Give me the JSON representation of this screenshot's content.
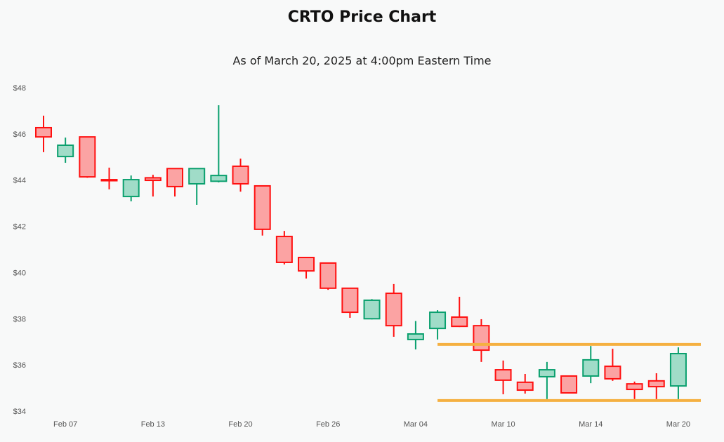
{
  "chart_data": {
    "type": "candlestick",
    "title": "CRTO Price Chart",
    "subtitle": "As of March 20, 2025 at 4:00pm Eastern Time",
    "xlabel": "",
    "ylabel": "",
    "ylim": [
      34,
      48
    ],
    "y_ticks": [
      34,
      36,
      38,
      40,
      42,
      44,
      46,
      48
    ],
    "y_tick_labels": [
      "$34",
      "$36",
      "$38",
      "$40",
      "$42",
      "$44",
      "$46",
      "$48"
    ],
    "x_tick_labels": [
      {
        "index": 1,
        "label": "Feb 07"
      },
      {
        "index": 5,
        "label": "Feb 13"
      },
      {
        "index": 9,
        "label": "Feb 20"
      },
      {
        "index": 13,
        "label": "Feb 26"
      },
      {
        "index": 17,
        "label": "Mar 04"
      },
      {
        "index": 21,
        "label": "Mar 10"
      },
      {
        "index": 25,
        "label": "Mar 14"
      },
      {
        "index": 29,
        "label": "Mar 20"
      }
    ],
    "grid": false,
    "colors": {
      "up_fill": "#a0dcc8",
      "up_line": "#0aa06e",
      "down_fill": "#fba3a3",
      "down_line": "#ff1010",
      "level_line": "#f5b041"
    },
    "candles": [
      {
        "date": "Feb 06",
        "open": 46.27,
        "high": 46.79,
        "low": 45.21,
        "close": 45.87
      },
      {
        "date": "Feb 07",
        "open": 45.02,
        "high": 45.84,
        "low": 44.75,
        "close": 45.51
      },
      {
        "date": "Feb 10",
        "open": 45.87,
        "high": 45.87,
        "low": 44.1,
        "close": 44.14
      },
      {
        "date": "Feb 11",
        "open": 44.02,
        "high": 44.54,
        "low": 43.6,
        "close": 43.98
      },
      {
        "date": "Feb 12",
        "open": 43.29,
        "high": 44.2,
        "low": 43.08,
        "close": 44.02
      },
      {
        "date": "Feb 13",
        "open": 44.1,
        "high": 44.23,
        "low": 43.29,
        "close": 43.99
      },
      {
        "date": "Feb 14",
        "open": 44.5,
        "high": 44.5,
        "low": 43.29,
        "close": 43.72
      },
      {
        "date": "Feb 18",
        "open": 43.84,
        "high": 44.5,
        "low": 42.93,
        "close": 44.5
      },
      {
        "date": "Feb 19",
        "open": 43.95,
        "high": 47.24,
        "low": 43.9,
        "close": 44.2
      },
      {
        "date": "Feb 20",
        "open": 44.6,
        "high": 44.93,
        "low": 43.5,
        "close": 43.84
      },
      {
        "date": "Feb 21",
        "open": 43.75,
        "high": 43.75,
        "low": 41.6,
        "close": 41.87
      },
      {
        "date": "Feb 24",
        "open": 41.56,
        "high": 41.8,
        "low": 40.35,
        "close": 40.44
      },
      {
        "date": "Feb 25",
        "open": 40.65,
        "high": 40.65,
        "low": 39.74,
        "close": 40.07
      },
      {
        "date": "Feb 26",
        "open": 40.41,
        "high": 40.41,
        "low": 39.25,
        "close": 39.32
      },
      {
        "date": "Feb 27",
        "open": 39.32,
        "high": 39.32,
        "low": 38.04,
        "close": 38.28
      },
      {
        "date": "Feb 28",
        "open": 38.0,
        "high": 38.85,
        "low": 37.97,
        "close": 38.8
      },
      {
        "date": "Mar 03",
        "open": 39.1,
        "high": 39.5,
        "low": 37.22,
        "close": 37.7
      },
      {
        "date": "Mar 04",
        "open": 37.1,
        "high": 37.9,
        "low": 36.67,
        "close": 37.34
      },
      {
        "date": "Mar 05",
        "open": 37.58,
        "high": 38.37,
        "low": 37.1,
        "close": 38.28
      },
      {
        "date": "Mar 06",
        "open": 38.07,
        "high": 38.95,
        "low": 37.64,
        "close": 37.67
      },
      {
        "date": "Mar 07",
        "open": 37.7,
        "high": 37.98,
        "low": 36.13,
        "close": 36.64
      },
      {
        "date": "Mar 10",
        "open": 35.79,
        "high": 36.19,
        "low": 34.73,
        "close": 35.34
      },
      {
        "date": "Mar 11",
        "open": 35.25,
        "high": 35.61,
        "low": 34.76,
        "close": 34.91
      },
      {
        "date": "Mar 12",
        "open": 35.49,
        "high": 36.13,
        "low": 34.52,
        "close": 35.79
      },
      {
        "date": "Mar 13",
        "open": 35.52,
        "high": 35.52,
        "low": 34.76,
        "close": 34.79
      },
      {
        "date": "Mar 14",
        "open": 35.52,
        "high": 36.82,
        "low": 35.21,
        "close": 36.22
      },
      {
        "date": "Mar 17",
        "open": 35.94,
        "high": 36.7,
        "low": 35.31,
        "close": 35.4
      },
      {
        "date": "Mar 18",
        "open": 35.18,
        "high": 35.28,
        "low": 34.52,
        "close": 34.94
      },
      {
        "date": "Mar 19",
        "open": 35.31,
        "high": 35.64,
        "low": 34.52,
        "close": 35.06
      },
      {
        "date": "Mar 20",
        "open": 35.09,
        "high": 36.76,
        "low": 34.52,
        "close": 36.49
      }
    ],
    "horizontal_levels": [
      {
        "name": "resistance",
        "value": 36.89,
        "from_index": 18
      },
      {
        "name": "support",
        "value": 34.46,
        "from_index": 18
      }
    ]
  }
}
